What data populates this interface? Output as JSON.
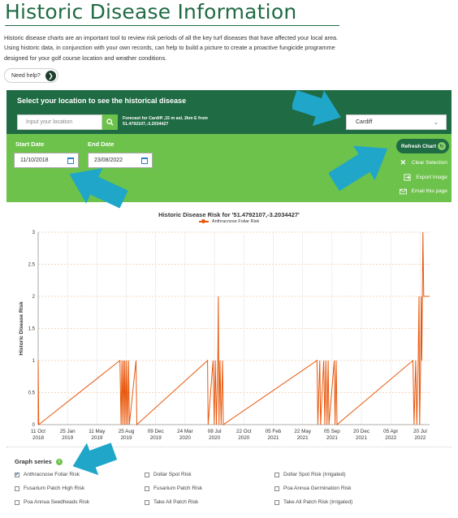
{
  "page": {
    "title": "Historic Disease Information",
    "intro": "Historic disease charts are an important tool to review risk periods of all the key turf diseases that have affected your local area. Using historic data, in conjunction with your own records, can help to build a picture to create a proactive fungicide programme designed for your golf course location and weather conditions.",
    "need_help": "Need help?"
  },
  "location": {
    "heading": "Select your location to see the historical disease",
    "input_placeholder": "Input your location",
    "forecast_line1": "Forecast for Cardiff ,15 m asl, 2km E from",
    "forecast_line2": "51.4792107,-3.2034427",
    "selected": "Cardiff"
  },
  "dates": {
    "start_label": "Start Date",
    "start_value": "11/10/2018",
    "end_label": "End Date",
    "end_value": "23/08/2022"
  },
  "actions": {
    "refresh": "Refresh Chart",
    "clear": "Clear Selection",
    "export": "Export Image",
    "email": "Email this page"
  },
  "chart_data": {
    "type": "line",
    "title": "Historic Disease Risk for '51.4792107,-3.2034427'",
    "ylabel": "Historic Disease Risk",
    "xlabel": "",
    "ylim": [
      0,
      3
    ],
    "yticks": [
      "0",
      "0.5",
      "1",
      "1.5",
      "2",
      "2.5",
      "3"
    ],
    "xticks": [
      [
        "11 Oct",
        "2018"
      ],
      [
        "25 Jan",
        "2019"
      ],
      [
        "11 May",
        "2019"
      ],
      [
        "25 Aug",
        "2019"
      ],
      [
        "09 Dec",
        "2019"
      ],
      [
        "24 Mar",
        "2020"
      ],
      [
        "08 Jul",
        "2020"
      ],
      [
        "22 Oct",
        "2020"
      ],
      [
        "05 Feb",
        "2021"
      ],
      [
        "22 May",
        "2021"
      ],
      [
        "05 Sep",
        "2021"
      ],
      [
        "20 Dec",
        "2021"
      ],
      [
        "05 Apr",
        "2022"
      ],
      [
        "20 Jul",
        "2022"
      ]
    ],
    "grid": true,
    "legend_position": "top",
    "series": [
      {
        "name": "Anthracnose Foliar Risk",
        "color": "#e8580c",
        "points": [
          [
            "11 Oct 2018",
            1
          ],
          [
            "13 Oct 2018",
            0
          ],
          [
            "02 Aug 2019",
            1
          ],
          [
            "06 Aug 2019",
            0
          ],
          [
            "09 Aug 2019",
            1
          ],
          [
            "12 Aug 2019",
            0
          ],
          [
            "15 Aug 2019",
            1
          ],
          [
            "18 Aug 2019",
            0
          ],
          [
            "20 Aug 2019",
            1
          ],
          [
            "24 Aug 2019",
            0
          ],
          [
            "26 Aug 2019",
            1
          ],
          [
            "30 Aug 2019",
            0
          ],
          [
            "02 Sep 2019",
            1
          ],
          [
            "05 Sep 2019",
            0
          ],
          [
            "29 Sep 2019",
            1
          ],
          [
            "02 Oct 2019",
            0
          ],
          [
            "13 Jun 2020",
            1
          ],
          [
            "15 Jun 2020",
            0
          ],
          [
            "03 Jul 2020",
            1
          ],
          [
            "07 Jul 2020",
            0
          ],
          [
            "11 Jul 2020",
            1
          ],
          [
            "15 Jul 2020",
            0
          ],
          [
            "20 Jul 2020",
            1
          ],
          [
            "22 Jul 2020",
            2
          ],
          [
            "24 Jul 2020",
            0
          ],
          [
            "28 Jul 2020",
            1
          ],
          [
            "01 Aug 2020",
            0
          ],
          [
            "06 Aug 2020",
            1
          ],
          [
            "09 Aug 2020",
            0
          ],
          [
            "13 Jul 2021",
            1
          ],
          [
            "16 Jul 2021",
            0
          ],
          [
            "23 Jul 2021",
            1
          ],
          [
            "26 Jul 2021",
            0
          ],
          [
            "06 Aug 2021",
            1
          ],
          [
            "10 Aug 2021",
            0
          ],
          [
            "14 Aug 2021",
            1
          ],
          [
            "18 Aug 2021",
            0
          ],
          [
            "22 Aug 2021",
            1
          ],
          [
            "25 Aug 2021",
            0
          ],
          [
            "13 Sep 2021",
            1
          ],
          [
            "16 Sep 2021",
            0
          ],
          [
            "20 Sep 2021",
            1
          ],
          [
            "23 Sep 2021",
            0
          ],
          [
            "24 Jun 2022",
            1
          ],
          [
            "28 Jun 2022",
            0
          ],
          [
            "04 Jul 2022",
            1
          ],
          [
            "08 Jul 2022",
            0
          ],
          [
            "13 Jul 2022",
            1
          ],
          [
            "16 Jul 2022",
            2
          ],
          [
            "18 Jul 2022",
            0
          ],
          [
            "22 Jul 2022",
            1
          ],
          [
            "24 Jul 2022",
            2
          ],
          [
            "26 Jul 2022",
            1
          ],
          [
            "30 Jul 2022",
            3
          ],
          [
            "02 Aug 2022",
            2
          ]
        ]
      }
    ]
  },
  "graph_series": {
    "label": "Graph series",
    "items": [
      {
        "label": "Anthracnose Foliar Risk",
        "checked": true
      },
      {
        "label": "Dollar Spot Risk",
        "checked": false
      },
      {
        "label": "Dollar Spot Risk (Irrigated)",
        "checked": false
      },
      {
        "label": "Fusarium Patch High Risk",
        "checked": false
      },
      {
        "label": "Fusarium Patch Risk",
        "checked": false
      },
      {
        "label": "Poa Annua Germination Risk",
        "checked": false
      },
      {
        "label": "Poa Annua Seedheads Risk",
        "checked": false
      },
      {
        "label": "Take All Patch Risk",
        "checked": false
      },
      {
        "label": "Take All Patch Risk (Irrigated)",
        "checked": false
      }
    ]
  },
  "colors": {
    "dark_green": "#1f6b43",
    "light_green": "#6cc24a",
    "series_orange": "#e8580c",
    "callout_blue": "#1fa6c9"
  }
}
